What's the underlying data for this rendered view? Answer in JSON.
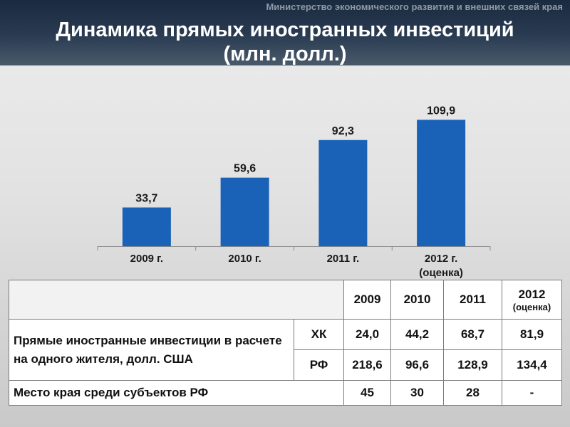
{
  "header": {
    "ministry": "Министерство экономического развития и внешних связей края",
    "title_line1": "Динамика прямых иностранных инвестиций",
    "title_line2": "(млн. долл.)"
  },
  "chart_data": {
    "type": "bar",
    "categories": [
      "2009 г.",
      "2010 г.",
      "2011 г.",
      "2012 г."
    ],
    "category_notes": [
      "",
      "",
      "",
      "(оценка)"
    ],
    "values": [
      33.7,
      59.6,
      92.3,
      109.9
    ],
    "value_labels": [
      "33,7",
      "59,6",
      "92,3",
      "109,9"
    ],
    "ylim": [
      0,
      120
    ],
    "grid": false,
    "bar_color": "#1a62b8"
  },
  "table": {
    "header": {
      "years": [
        "2009",
        "2010",
        "2011",
        "2012"
      ],
      "note_2012": "(оценка)"
    },
    "rows": {
      "fdi_per_capita": {
        "label": "Прямые иностранные инвестиции в расчете на одного жителя, долл. США",
        "hk": {
          "region": "ХК",
          "values": [
            "24,0",
            "44,2",
            "68,7",
            "81,9"
          ]
        },
        "rf": {
          "region": "РФ",
          "values": [
            "218,6",
            "96,6",
            "128,9",
            "134,4"
          ]
        }
      },
      "place": {
        "label": "Место края среди субъектов РФ",
        "values": [
          "45",
          "30",
          "28",
          "-"
        ]
      }
    }
  }
}
